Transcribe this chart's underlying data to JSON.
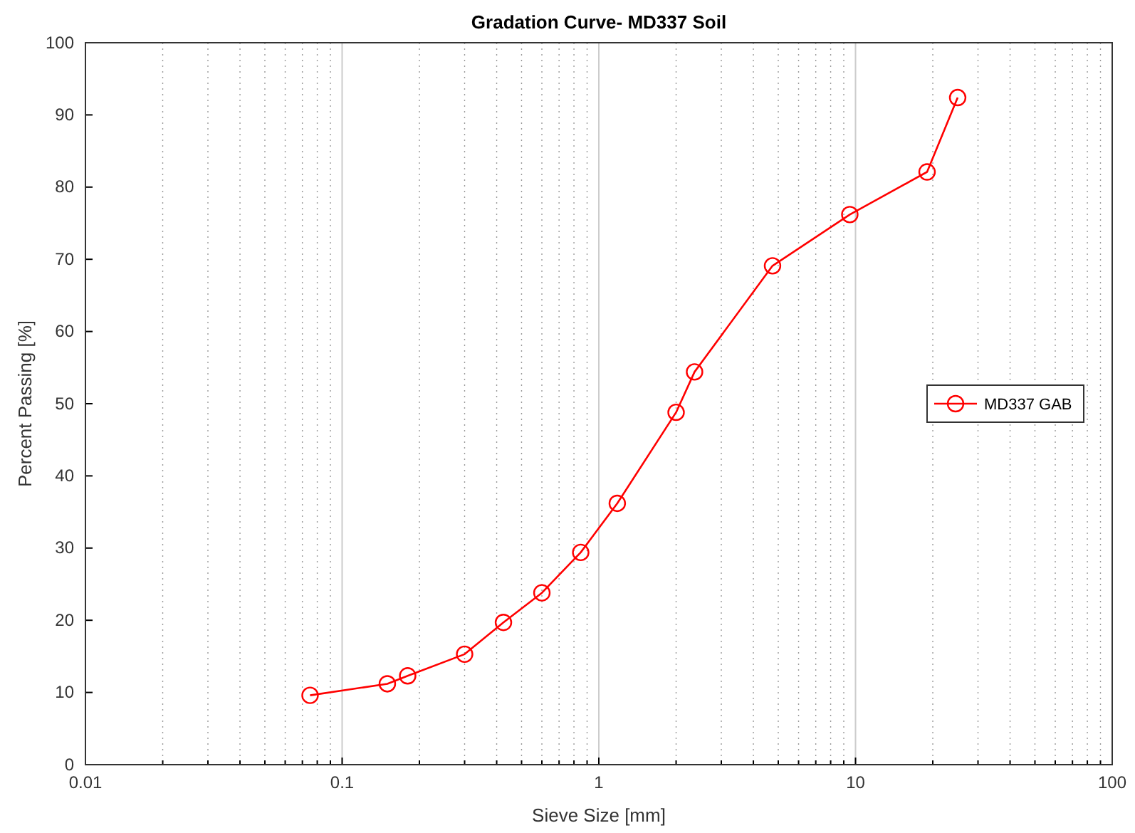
{
  "chart_data": {
    "type": "line",
    "title": "Gradation Curve- MD337 Soil",
    "xlabel": "Sieve Size [mm]",
    "ylabel": "Percent Passing [%]",
    "log": "x",
    "grid": "x",
    "legend": "right",
    "marker": "circle",
    "line_style": "solid",
    "xlim": [
      0.01,
      100
    ],
    "xticks": [
      {
        "value": 0.01,
        "label": "0.01"
      },
      {
        "value": 0.02,
        "label": null
      },
      {
        "value": 0.03,
        "label": null
      },
      {
        "value": 0.04,
        "label": null
      },
      {
        "value": 0.05,
        "label": null
      },
      {
        "value": 0.06,
        "label": null
      },
      {
        "value": 0.07,
        "label": null
      },
      {
        "value": 0.08,
        "label": null
      },
      {
        "value": 0.09,
        "label": null
      },
      {
        "value": 0.1,
        "label": "0.1"
      },
      {
        "value": 0.2,
        "label": null
      },
      {
        "value": 0.3,
        "label": null
      },
      {
        "value": 0.4,
        "label": null
      },
      {
        "value": 0.5,
        "label": null
      },
      {
        "value": 0.6,
        "label": null
      },
      {
        "value": 0.7,
        "label": null
      },
      {
        "value": 0.8,
        "label": null
      },
      {
        "value": 0.9,
        "label": null
      },
      1,
      {
        "value": 2,
        "label": null
      },
      {
        "value": 3,
        "label": null
      },
      {
        "value": 4,
        "label": null
      },
      {
        "value": 5,
        "label": null
      },
      {
        "value": 6,
        "label": null
      },
      {
        "value": 7,
        "label": null
      },
      {
        "value": 8,
        "label": null
      },
      {
        "value": 9,
        "label": null
      },
      10,
      {
        "value": 20,
        "label": null
      },
      {
        "value": 30,
        "label": null
      },
      {
        "value": 40,
        "label": null
      },
      {
        "value": 50,
        "label": null
      },
      {
        "value": 60,
        "label": null
      },
      {
        "value": 70,
        "label": null
      },
      {
        "value": 80,
        "label": null
      },
      {
        "value": 90,
        "label": null
      },
      100
    ],
    "ylim": [
      0,
      100
    ],
    "yticks": [
      0,
      10,
      20,
      30,
      40,
      50,
      60,
      70,
      80,
      90,
      100
    ],
    "x": [
      0.075,
      0.15,
      0.18,
      0.3,
      0.425,
      0.6,
      0.85,
      1.18,
      2.0,
      2.36,
      4.75,
      9.5,
      19,
      25
    ],
    "series": [
      {
        "name": "MD337 GAB",
        "color": "#ff0000",
        "values": [
          9.6,
          11.2,
          12.3,
          15.3,
          19.7,
          23.8,
          29.4,
          36.2,
          48.8,
          54.4,
          69.1,
          76.2,
          82.1,
          92.4
        ]
      }
    ]
  }
}
